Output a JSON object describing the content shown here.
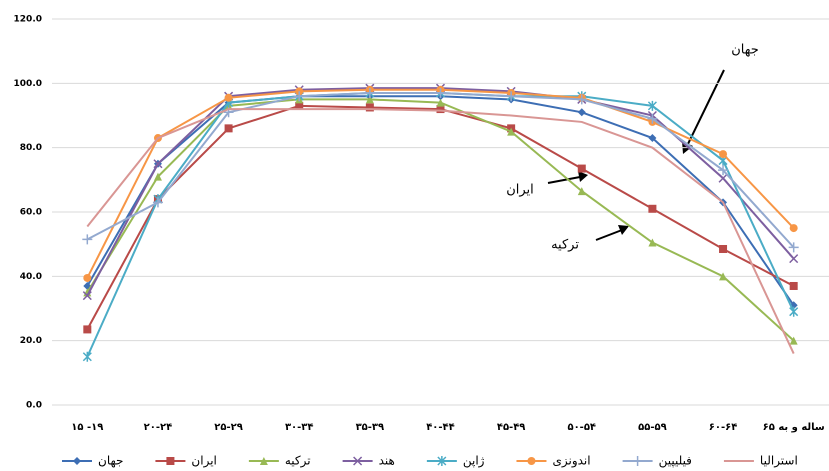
{
  "chart_data": {
    "type": "line",
    "categories": [
      "۱۵ -۱۹",
      "۲۰-۲۴",
      "۲۵-۲۹",
      "۳۰-۳۴",
      "۳۵-۳۹",
      "۴۰-۴۴",
      "۴۵-۴۹",
      "۵۰-۵۴",
      "۵۵-۵۹",
      "۶۰-۶۴",
      "۶۵ ساله و به"
    ],
    "series": [
      {
        "name": "جهان",
        "color": "#3d6eb4",
        "marker": "diamond",
        "values": [
          37,
          75,
          94,
          96,
          96,
          96,
          95,
          91,
          83,
          63,
          31
        ]
      },
      {
        "name": "ایران",
        "color": "#b94a48",
        "marker": "square",
        "values": [
          23.5,
          64,
          86,
          93,
          92.5,
          92,
          86,
          73.5,
          61,
          48.5,
          37
        ]
      },
      {
        "name": "ترکیه",
        "color": "#98b954",
        "marker": "triangle",
        "values": [
          35,
          71,
          93,
          95,
          95,
          94,
          85,
          66.5,
          50.5,
          40,
          20
        ]
      },
      {
        "name": "هند",
        "color": "#7d5fa0",
        "marker": "x",
        "values": [
          34,
          75,
          96,
          98,
          98.5,
          98.5,
          97.5,
          95,
          90,
          70.5,
          45.5
        ]
      },
      {
        "name": "ژاپن",
        "color": "#4bacc6",
        "marker": "star",
        "values": [
          15,
          64,
          94,
          96,
          97,
          97,
          96,
          96,
          93,
          76,
          29
        ]
      },
      {
        "name": "اندونزی",
        "color": "#f79646",
        "marker": "circle",
        "values": [
          39.5,
          83,
          95.5,
          97.5,
          98,
          98,
          97,
          95.5,
          88,
          78,
          55
        ]
      },
      {
        "name": "فیلیپین",
        "color": "#93a9cf",
        "marker": "plus",
        "values": [
          51.5,
          63,
          91,
          96,
          97,
          97,
          96,
          95,
          89,
          73,
          49
        ]
      },
      {
        "name": "استرالیا",
        "color": "#d99694",
        "marker": "none",
        "values": [
          55.5,
          83,
          92,
          92,
          92,
          91.5,
          90,
          88,
          80,
          63,
          16
        ]
      }
    ],
    "ylim": [
      0,
      120
    ],
    "yticks": [
      {
        "value": 0,
        "label": "0.0"
      },
      {
        "value": 20,
        "label": "20.0"
      },
      {
        "value": 40,
        "label": "40.0"
      },
      {
        "value": 60,
        "label": "60.0"
      },
      {
        "value": 80,
        "label": "80.0"
      },
      {
        "value": 100,
        "label": "100.0"
      },
      {
        "value": 120,
        "label": "120.0"
      }
    ],
    "grid": true,
    "legend": "bottom",
    "annotations": [
      "جهان",
      "ایران",
      "ترکیه"
    ]
  }
}
